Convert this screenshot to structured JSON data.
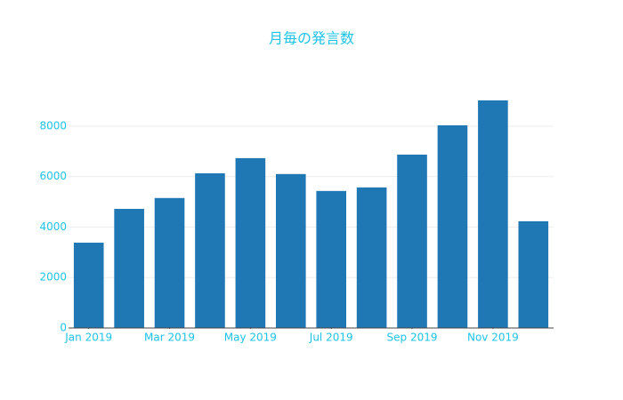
{
  "chart_data": {
    "type": "bar",
    "title": "月毎の発言数",
    "x": [
      "2019-01",
      "2019-02",
      "2019-03",
      "2019-04",
      "2019-05",
      "2019-06",
      "2019-07",
      "2019-08",
      "2019-09",
      "2019-10",
      "2019-11",
      "2019-12"
    ],
    "values": [
      3380,
      4720,
      5150,
      6130,
      6730,
      6100,
      5430,
      5570,
      6870,
      8030,
      9020,
      4230
    ],
    "color": "#1f77b4",
    "xticks": [
      {
        "value": "2019-01",
        "label": "Jan 2019"
      },
      {
        "value": "2019-03",
        "label": "Mar 2019"
      },
      {
        "value": "2019-05",
        "label": "May 2019"
      },
      {
        "value": "2019-07",
        "label": "Jul 2019"
      },
      {
        "value": "2019-09",
        "label": "Sep 2019"
      },
      {
        "value": "2019-11",
        "label": "Nov 2019"
      }
    ],
    "ylim": [
      0,
      9474
    ],
    "yticks": [
      0,
      2000,
      4000,
      6000,
      8000
    ],
    "grid": true
  }
}
